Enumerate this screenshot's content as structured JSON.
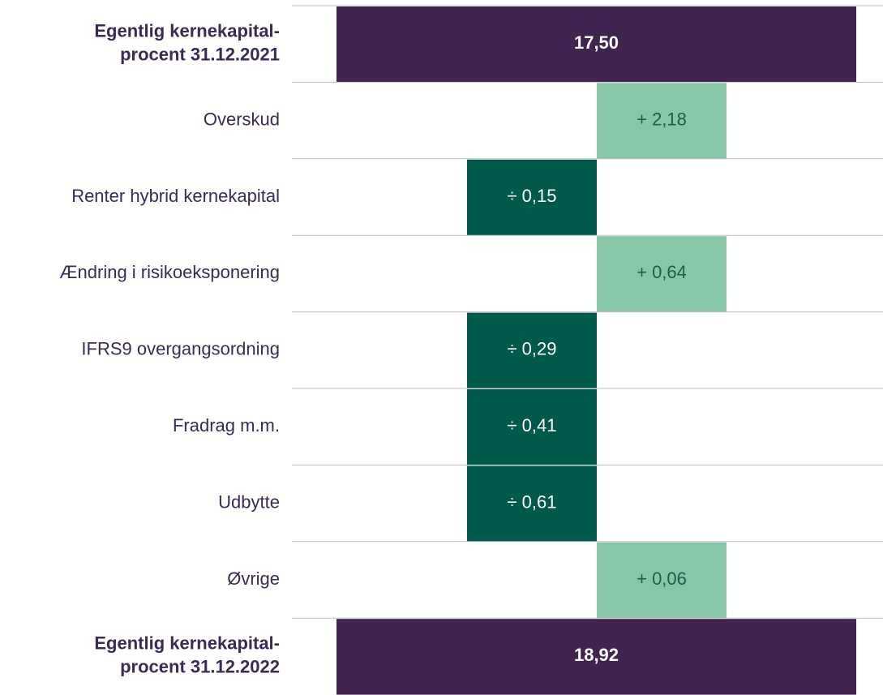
{
  "rows": [
    {
      "label": [
        "Egentlig kernekapital-",
        "procent 31.12.2021"
      ],
      "value": "17,50",
      "kind": "total"
    },
    {
      "label": [
        "Overskud"
      ],
      "value": "+ 2,18",
      "kind": "increase"
    },
    {
      "label": [
        "Renter hybrid kernekapital"
      ],
      "value": "÷ 0,15",
      "kind": "decrease"
    },
    {
      "label": [
        "Ændring i risikoeksponering"
      ],
      "value": "+ 0,64",
      "kind": "increase"
    },
    {
      "label": [
        "IFRS9 overgangsordning"
      ],
      "value": "÷ 0,29",
      "kind": "decrease"
    },
    {
      "label": [
        "Fradrag m.m."
      ],
      "value": "÷ 0,41",
      "kind": "decrease"
    },
    {
      "label": [
        "Udbytte"
      ],
      "value": "÷ 0,61",
      "kind": "decrease"
    },
    {
      "label": [
        "Øvrige"
      ],
      "value": "+ 0,06",
      "kind": "increase"
    },
    {
      "label": [
        "Egentlig kernekapital-",
        "procent 31.12.2022"
      ],
      "value": "18,92",
      "kind": "total"
    }
  ],
  "colors": {
    "total": "#40234f",
    "increase": "#87c7a8",
    "decrease": "#005a4b"
  }
}
